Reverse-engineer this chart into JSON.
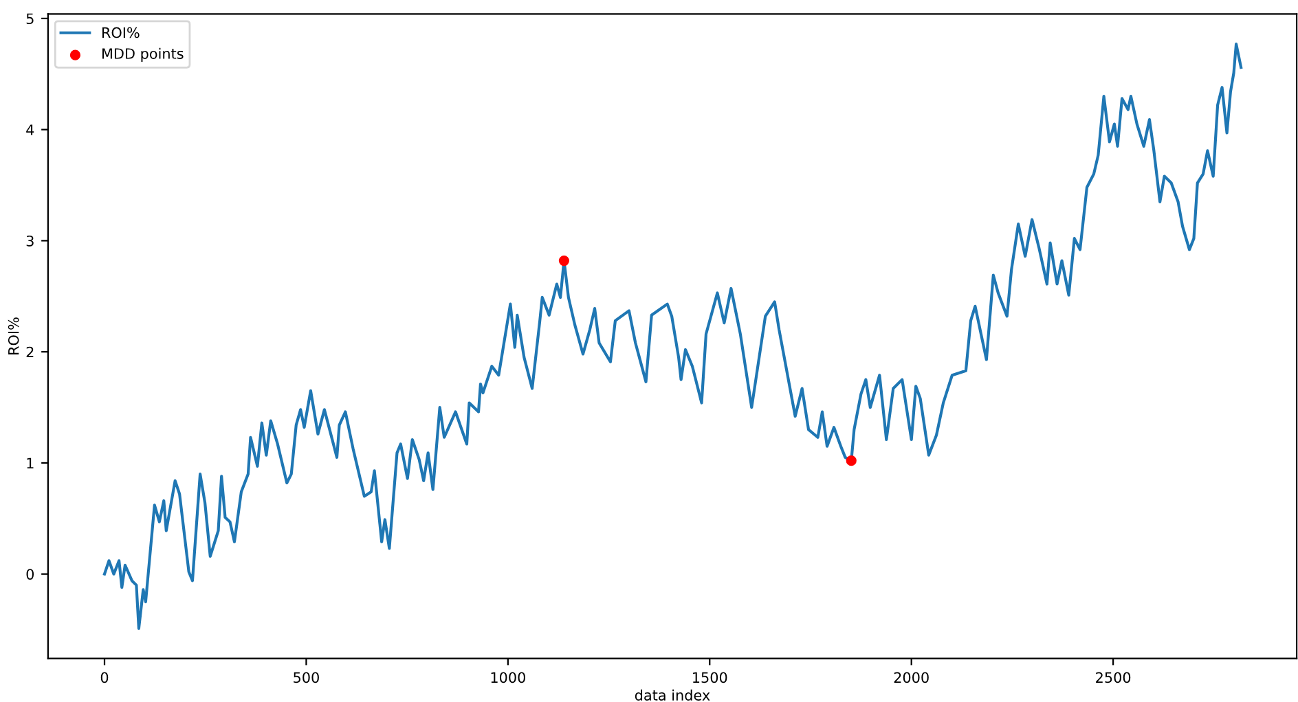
{
  "chart_data": {
    "type": "line",
    "xlabel": "data index",
    "ylabel": "ROI%",
    "legend": "top left",
    "grid": false,
    "xlim": [
      -140,
      2955
    ],
    "ylim": [
      -0.76,
      5.04
    ],
    "xticks": [
      0,
      500,
      1000,
      1500,
      2000,
      2500
    ],
    "yticks": [
      0,
      1,
      2,
      3,
      4,
      5
    ],
    "series": [
      {
        "name": "ROI%",
        "color": "#1f77b4",
        "x": [
          0,
          11,
          23,
          36,
          43,
          51,
          68,
          79,
          85,
          96,
          102,
          124,
          136,
          147,
          153,
          175,
          186,
          209,
          218,
          237,
          249,
          262,
          282,
          290,
          299,
          311,
          322,
          339,
          356,
          362,
          379,
          390,
          401,
          412,
          429,
          452,
          463,
          475,
          486,
          495,
          511,
          529,
          545,
          576,
          582,
          597,
          616,
          644,
          661,
          669,
          687,
          695,
          706,
          725,
          734,
          751,
          763,
          780,
          791,
          802,
          814,
          831,
          842,
          870,
          898,
          904,
          927,
          932,
          938,
          960,
          977,
          1006,
          1017,
          1023,
          1040,
          1060,
          1079,
          1085,
          1102,
          1121,
          1130,
          1139,
          1150,
          1166,
          1186,
          1203,
          1215,
          1226,
          1254,
          1266,
          1300,
          1316,
          1342,
          1356,
          1395,
          1406,
          1423,
          1429,
          1440,
          1457,
          1480,
          1491,
          1519,
          1536,
          1553,
          1576,
          1604,
          1638,
          1661,
          1672,
          1712,
          1729,
          1745,
          1768,
          1779,
          1791,
          1808,
          1825,
          1836,
          1851,
          1858,
          1875,
          1887,
          1898,
          1921,
          1938,
          1955,
          1977,
          2000,
          2011,
          2022,
          2043,
          2062,
          2079,
          2101,
          2135,
          2147,
          2158,
          2186,
          2203,
          2215,
          2237,
          2248,
          2265,
          2282,
          2299,
          2316,
          2336,
          2344,
          2361,
          2373,
          2390,
          2404,
          2418,
          2435,
          2452,
          2463,
          2477,
          2491,
          2503,
          2511,
          2522,
          2537,
          2544,
          2559,
          2576,
          2590,
          2601,
          2616,
          2627,
          2644,
          2661,
          2672,
          2689,
          2700,
          2709,
          2723,
          2734,
          2748,
          2759,
          2770,
          2782,
          2791,
          2799,
          2805,
          2817
        ],
        "values": [
          0,
          0.12,
          0,
          0.12,
          -0.12,
          0.08,
          -0.06,
          -0.1,
          -0.49,
          -0.14,
          -0.25,
          0.62,
          0.47,
          0.66,
          0.39,
          0.84,
          0.72,
          0.02,
          -0.06,
          0.9,
          0.64,
          0.16,
          0.39,
          0.88,
          0.51,
          0.47,
          0.29,
          0.74,
          0.9,
          1.23,
          0.97,
          1.36,
          1.07,
          1.38,
          1.17,
          0.82,
          0.9,
          1.34,
          1.48,
          1.32,
          1.65,
          1.26,
          1.48,
          1.05,
          1.34,
          1.46,
          1.13,
          0.7,
          0.74,
          0.93,
          0.29,
          0.49,
          0.23,
          1.09,
          1.17,
          0.86,
          1.21,
          1.03,
          0.84,
          1.09,
          0.76,
          1.5,
          1.23,
          1.46,
          1.17,
          1.54,
          1.46,
          1.71,
          1.63,
          1.87,
          1.79,
          2.43,
          2.04,
          2.33,
          1.95,
          1.67,
          2.28,
          2.49,
          2.33,
          2.61,
          2.49,
          2.82,
          2.49,
          2.24,
          1.98,
          2.2,
          2.39,
          2.08,
          1.91,
          2.28,
          2.37,
          2.08,
          1.73,
          2.33,
          2.43,
          2.32,
          1.95,
          1.75,
          2.02,
          1.87,
          1.54,
          2.16,
          2.53,
          2.26,
          2.57,
          2.16,
          1.5,
          2.32,
          2.45,
          2.2,
          1.42,
          1.67,
          1.3,
          1.23,
          1.46,
          1.15,
          1.32,
          1.15,
          1.05,
          1.02,
          1.3,
          1.62,
          1.75,
          1.5,
          1.79,
          1.21,
          1.67,
          1.75,
          1.21,
          1.69,
          1.58,
          1.07,
          1.25,
          1.54,
          1.79,
          1.83,
          2.28,
          2.41,
          1.93,
          2.69,
          2.53,
          2.32,
          2.74,
          3.15,
          2.86,
          3.19,
          2.94,
          2.61,
          2.98,
          2.61,
          2.82,
          2.51,
          3.02,
          2.92,
          3.48,
          3.6,
          3.77,
          4.3,
          3.89,
          4.05,
          3.85,
          4.28,
          4.18,
          4.3,
          4.05,
          3.85,
          4.09,
          3.81,
          3.35,
          3.58,
          3.52,
          3.35,
          3.13,
          2.92,
          3.02,
          3.52,
          3.6,
          3.81,
          3.58,
          4.22,
          4.38,
          3.97,
          4.34,
          4.51,
          4.77,
          4.56
        ]
      },
      {
        "name": "MDD points",
        "type": "scatter",
        "color": "#ff0000",
        "marker": "circle",
        "x": [
          1139,
          1851
        ],
        "values": [
          2.82,
          1.02
        ]
      }
    ]
  }
}
